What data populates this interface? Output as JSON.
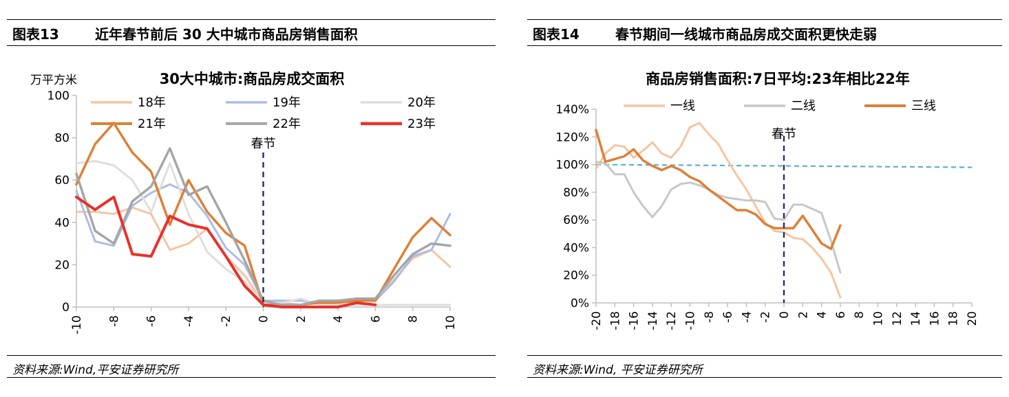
{
  "left_panel": {
    "figure_label": "图表13",
    "figure_title": "近年春节前后 30 大中城市商品房销售面积",
    "source": "资料来源:Wind,平安证券研究所"
  },
  "right_panel": {
    "figure_label": "图表14",
    "figure_title": "春节期间一线城市商品房成交面积更快走弱",
    "source": "资料来源:Wind,  平安证券研究所"
  },
  "chart_data": [
    {
      "type": "line",
      "title": "30大中城市:商品房成交面积",
      "ylabel": "万平方米",
      "xlim": [
        -10,
        10
      ],
      "ylim": [
        0,
        100
      ],
      "xticks": [
        -10,
        -8,
        -6,
        -4,
        -2,
        0,
        2,
        4,
        6,
        8,
        10
      ],
      "yticks": [
        0,
        20,
        40,
        60,
        80,
        100
      ],
      "x_tick_labels": [
        "-10",
        "-8",
        "-6",
        "-4",
        "-2",
        "0",
        "2",
        "4",
        "6",
        "8",
        "10"
      ],
      "y_tick_labels": [
        "0",
        "20",
        "40",
        "60",
        "80",
        "100"
      ],
      "annotation": {
        "text": "春节",
        "x": 0
      },
      "grid": false,
      "legend_position": "top",
      "x": [
        -10,
        -9,
        -8,
        -7,
        -6,
        -5,
        -4,
        -3,
        -2,
        -1,
        0,
        1,
        2,
        3,
        4,
        5,
        6,
        7,
        8,
        9,
        10
      ],
      "series": [
        {
          "name": "18年",
          "color": "#f4c5a0",
          "width": 3,
          "values": [
            45,
            45,
            44,
            47,
            44,
            27,
            30,
            37,
            24,
            15,
            2,
            2,
            1,
            2,
            3,
            3,
            3,
            13,
            23,
            27,
            19
          ]
        },
        {
          "name": "19年",
          "color": "#aabde6",
          "width": 3,
          "values": [
            55,
            31,
            29,
            48,
            54,
            58,
            54,
            43,
            28,
            20,
            3,
            3,
            3,
            2,
            3,
            3,
            3,
            12,
            24,
            27,
            44
          ]
        },
        {
          "name": "20年",
          "color": "#dedede",
          "width": 3,
          "values": [
            68,
            69,
            67,
            60,
            45,
            68,
            44,
            26,
            18,
            12,
            2,
            2,
            4,
            1,
            1,
            1,
            1,
            1,
            1,
            1,
            1
          ]
        },
        {
          "name": "21年",
          "color": "#df7f35",
          "width": 3.5,
          "values": [
            58,
            77,
            87,
            73,
            64,
            39,
            60,
            45,
            35,
            29,
            1,
            1,
            1,
            2,
            2,
            3,
            3,
            18,
            33,
            42,
            34
          ]
        },
        {
          "name": "22年",
          "color": "#a6a6a6",
          "width": 3.5,
          "values": [
            63,
            36,
            30,
            50,
            57,
            75,
            53,
            57,
            40,
            22,
            3,
            1,
            1,
            3,
            3,
            4,
            4,
            15,
            25,
            30,
            29
          ]
        },
        {
          "name": "23年",
          "color": "#e8312a",
          "width": 4,
          "values": [
            52,
            46,
            52,
            25,
            24,
            43,
            39,
            37,
            24,
            10,
            1,
            0,
            0,
            0,
            0,
            2,
            1,
            null,
            null,
            null,
            null
          ]
        }
      ]
    },
    {
      "type": "line",
      "title": "商品房销售面积:7日平均:23年相比22年",
      "xlim": [
        -20,
        20
      ],
      "ylim": [
        0,
        140
      ],
      "xticks": [
        -20,
        -18,
        -16,
        -14,
        -12,
        -10,
        -8,
        -6,
        -4,
        -2,
        0,
        2,
        4,
        6,
        8,
        10,
        12,
        14,
        16,
        18,
        20
      ],
      "yticks": [
        0,
        20,
        40,
        60,
        80,
        100,
        120,
        140
      ],
      "x_tick_labels": [
        "-20",
        "-18",
        "-16",
        "-14",
        "-12",
        "-10",
        "-8",
        "-6",
        "-4",
        "-2",
        "0",
        "2",
        "4",
        "6",
        "8",
        "10",
        "12",
        "14",
        "16",
        "18",
        "20"
      ],
      "y_tick_labels": [
        "0%",
        "20%",
        "40%",
        "60%",
        "80%",
        "100%",
        "120%",
        "140%"
      ],
      "annotation": {
        "text": "春节",
        "x": 0
      },
      "reference_line": {
        "y": 100,
        "y_end": 98,
        "color": "#5aaed3"
      },
      "grid": false,
      "legend_position": "top",
      "x": [
        -20,
        -19,
        -18,
        -17,
        -16,
        -15,
        -14,
        -13,
        -12,
        -11,
        -10,
        -9,
        -8,
        -7,
        -6,
        -5,
        -4,
        -3,
        -2,
        -1,
        0,
        1,
        2,
        3,
        4,
        5,
        6
      ],
      "series": [
        {
          "name": "一线",
          "color": "#f4c5a0",
          "width": 3,
          "values": [
            97,
            108,
            114,
            113,
            105,
            110,
            116,
            108,
            105,
            113,
            127,
            130,
            122,
            115,
            103,
            92,
            82,
            70,
            58,
            52,
            51,
            47,
            46,
            40,
            32,
            22,
            4
          ]
        },
        {
          "name": "二线",
          "color": "#c7c7c7",
          "width": 3,
          "values": [
            102,
            101,
            93,
            93,
            80,
            70,
            62,
            70,
            82,
            86,
            87,
            85,
            82,
            78,
            76,
            75,
            74,
            74,
            73,
            61,
            60,
            71,
            71,
            68,
            65,
            45,
            22
          ]
        },
        {
          "name": "三线",
          "color": "#df7f35",
          "width": 3.5,
          "values": [
            125,
            102,
            104,
            106,
            111,
            103,
            99,
            96,
            99,
            96,
            91,
            88,
            82,
            77,
            72,
            67,
            67,
            64,
            57,
            54,
            54,
            54,
            63,
            53,
            43,
            39,
            56
          ]
        }
      ]
    }
  ]
}
